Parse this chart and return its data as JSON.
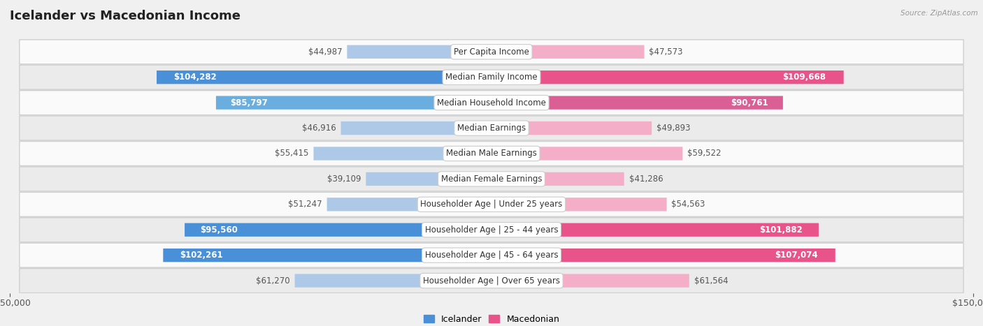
{
  "title": "Icelander vs Macedonian Income",
  "source": "Source: ZipAtlas.com",
  "categories": [
    "Per Capita Income",
    "Median Family Income",
    "Median Household Income",
    "Median Earnings",
    "Median Male Earnings",
    "Median Female Earnings",
    "Householder Age | Under 25 years",
    "Householder Age | 25 - 44 years",
    "Householder Age | 45 - 64 years",
    "Householder Age | Over 65 years"
  ],
  "icelander_values": [
    44987,
    104282,
    85797,
    46916,
    55415,
    39109,
    51247,
    95560,
    102261,
    61270
  ],
  "macedonian_values": [
    47573,
    109668,
    90761,
    49893,
    59522,
    41286,
    54563,
    101882,
    107074,
    61564
  ],
  "icelander_colors": [
    "#aec9e8",
    "#4a90d9",
    "#6aaee0",
    "#aec9e8",
    "#aec9e8",
    "#aec9e8",
    "#aec9e8",
    "#4a90d9",
    "#4a90d9",
    "#aec9e8"
  ],
  "macedonian_colors": [
    "#f4aec8",
    "#e8538a",
    "#d95f95",
    "#f4aec8",
    "#f4aec8",
    "#f4aec8",
    "#f4aec8",
    "#e8538a",
    "#e8538a",
    "#f4aec8"
  ],
  "icelander_label_color_outside": "#555555",
  "macedonian_label_color_outside": "#555555",
  "icelander_label_color_inside": "#ffffff",
  "macedonian_label_color_inside": "#ffffff",
  "bar_height": 0.52,
  "xlim": 150000,
  "background_color": "#f0f0f0",
  "row_bg_light": "#fafafa",
  "row_bg_dark": "#ebebeb",
  "title_fontsize": 13,
  "label_fontsize": 8.5,
  "category_fontsize": 8.5,
  "axis_fontsize": 9,
  "legend_fontsize": 9,
  "inside_threshold": 70000
}
